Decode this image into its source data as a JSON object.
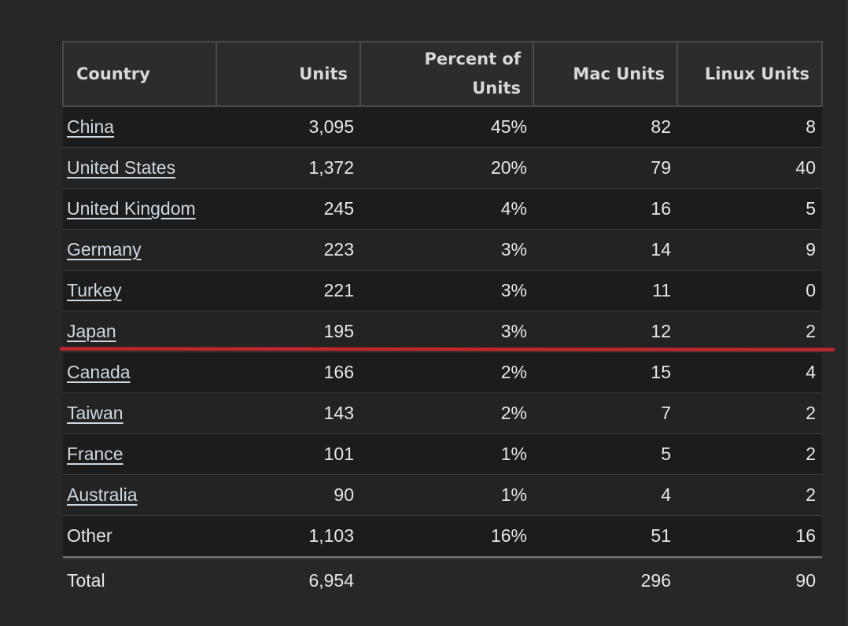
{
  "table": {
    "headers": {
      "country": "Country",
      "units": "Units",
      "percent": "Percent of Units",
      "mac": "Mac Units",
      "linux": "Linux Units"
    },
    "rows": [
      {
        "country": "China",
        "units": "3,095",
        "percent": "45%",
        "mac": "82",
        "linux": "8",
        "link": true
      },
      {
        "country": "United States",
        "units": "1,372",
        "percent": "20%",
        "mac": "79",
        "linux": "40",
        "link": true
      },
      {
        "country": "United Kingdom",
        "units": "245",
        "percent": "4%",
        "mac": "16",
        "linux": "5",
        "link": true
      },
      {
        "country": "Germany",
        "units": "223",
        "percent": "3%",
        "mac": "14",
        "linux": "9",
        "link": true
      },
      {
        "country": "Turkey",
        "units": "221",
        "percent": "3%",
        "mac": "11",
        "linux": "0",
        "link": true
      },
      {
        "country": "Japan",
        "units": "195",
        "percent": "3%",
        "mac": "12",
        "linux": "2",
        "link": true
      },
      {
        "country": "Canada",
        "units": "166",
        "percent": "2%",
        "mac": "15",
        "linux": "4",
        "link": true
      },
      {
        "country": "Taiwan",
        "units": "143",
        "percent": "2%",
        "mac": "7",
        "linux": "2",
        "link": true
      },
      {
        "country": "France",
        "units": "101",
        "percent": "1%",
        "mac": "5",
        "linux": "2",
        "link": true
      },
      {
        "country": "Australia",
        "units": "90",
        "percent": "1%",
        "mac": "4",
        "linux": "2",
        "link": true
      },
      {
        "country": "Other",
        "units": "1,103",
        "percent": "16%",
        "mac": "51",
        "linux": "16",
        "link": false
      }
    ],
    "total": {
      "label": "Total",
      "units": "6,954",
      "percent": "",
      "mac": "296",
      "linux": "90"
    }
  },
  "colors": {
    "background": "#272727",
    "link": "#cdd7e0",
    "highlight_line": "#c1272d"
  }
}
